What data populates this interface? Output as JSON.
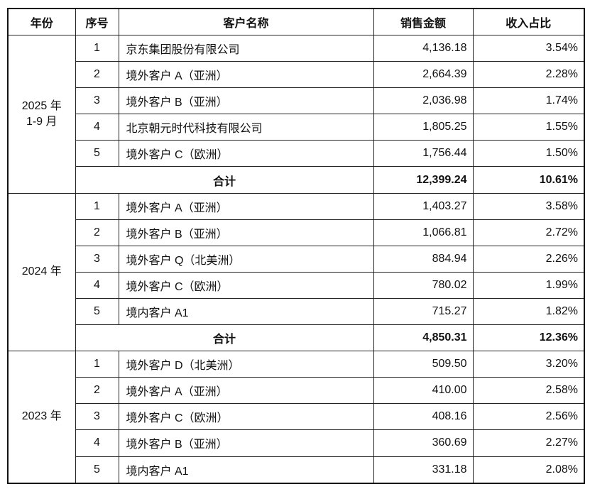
{
  "headers": [
    "年份",
    "序号",
    "客户名称",
    "销售金额",
    "收入占比"
  ],
  "groups": [
    {
      "year": "2025 年\n1-9 月",
      "rows": [
        {
          "no": "1",
          "name": "京东集团股份有限公司",
          "amount": "4,136.18",
          "ratio": "3.54%"
        },
        {
          "no": "2",
          "name": "境外客户 A（亚洲）",
          "amount": "2,664.39",
          "ratio": "2.28%"
        },
        {
          "no": "3",
          "name": "境外客户 B（亚洲）",
          "amount": "2,036.98",
          "ratio": "1.74%"
        },
        {
          "no": "4",
          "name": "北京朝元时代科技有限公司",
          "amount": "1,805.25",
          "ratio": "1.55%"
        },
        {
          "no": "5",
          "name": "境外客户 C（欧洲）",
          "amount": "1,756.44",
          "ratio": "1.50%"
        }
      ],
      "total": {
        "label": "合计",
        "amount": "12,399.24",
        "ratio": "10.61%"
      }
    },
    {
      "year": "2024 年",
      "rows": [
        {
          "no": "1",
          "name": "境外客户 A（亚洲）",
          "amount": "1,403.27",
          "ratio": "3.58%"
        },
        {
          "no": "2",
          "name": "境外客户 B（亚洲）",
          "amount": "1,066.81",
          "ratio": "2.72%"
        },
        {
          "no": "3",
          "name": "境外客户 Q（北美洲）",
          "amount": "884.94",
          "ratio": "2.26%"
        },
        {
          "no": "4",
          "name": "境外客户 C（欧洲）",
          "amount": "780.02",
          "ratio": "1.99%"
        },
        {
          "no": "5",
          "name": "境内客户 A1",
          "amount": "715.27",
          "ratio": "1.82%"
        }
      ],
      "total": {
        "label": "合计",
        "amount": "4,850.31",
        "ratio": "12.36%"
      }
    },
    {
      "year": "2023 年",
      "rows": [
        {
          "no": "1",
          "name": "境外客户 D（北美洲）",
          "amount": "509.50",
          "ratio": "3.20%"
        },
        {
          "no": "2",
          "name": "境外客户 A（亚洲）",
          "amount": "410.00",
          "ratio": "2.58%"
        },
        {
          "no": "3",
          "name": "境外客户 C（欧洲）",
          "amount": "408.16",
          "ratio": "2.56%"
        },
        {
          "no": "4",
          "name": "境外客户 B（亚洲）",
          "amount": "360.69",
          "ratio": "2.27%"
        },
        {
          "no": "5",
          "name": "境内客户 A1",
          "amount": "331.18",
          "ratio": "2.08%"
        }
      ]
    }
  ]
}
